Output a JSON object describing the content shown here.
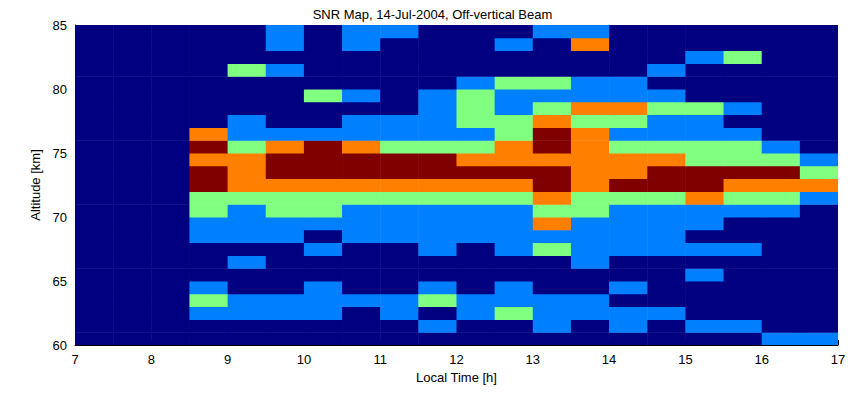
{
  "chart_data": {
    "type": "heatmap",
    "title": "SNR Map, 14-Jul-2004, Off-vertical Beam",
    "xlabel": "Local Time [h]",
    "ylabel": "Altitude [km]",
    "xlim": [
      7,
      17
    ],
    "xticks": [
      7,
      8,
      9,
      10,
      11,
      12,
      13,
      14,
      15,
      16,
      17
    ],
    "ylim": [
      60,
      85
    ],
    "yticks": [
      60,
      65,
      70,
      75,
      80,
      85
    ],
    "grid": false,
    "x_edges": [
      7,
      7.5,
      8,
      8.5,
      9,
      9.5,
      10,
      10.5,
      11,
      11.5,
      12,
      12.5,
      13,
      13.5,
      14,
      14.5,
      15,
      15.5,
      16,
      16.5,
      17
    ],
    "y_edges": [
      60,
      61,
      62,
      63,
      64,
      65,
      66,
      67,
      68,
      69,
      70,
      71,
      72,
      73,
      74,
      75,
      76,
      77,
      78,
      79,
      80,
      81,
      82,
      83,
      84,
      85
    ],
    "zlim": [
      0,
      4
    ],
    "z": [
      [
        0,
        0,
        0,
        0,
        0,
        0,
        0,
        0,
        0,
        0,
        0,
        0,
        0,
        0,
        0,
        0,
        0,
        0,
        1,
        1
      ],
      [
        0,
        0,
        0,
        0,
        0,
        0,
        0,
        0,
        0,
        1,
        0,
        0,
        1,
        0,
        1,
        0,
        1,
        1,
        0,
        0
      ],
      [
        0,
        0,
        0,
        1,
        1,
        1,
        1,
        0,
        1,
        0,
        1,
        2,
        1,
        1,
        1,
        1,
        0,
        0,
        0,
        0
      ],
      [
        0,
        0,
        0,
        2,
        1,
        1,
        1,
        1,
        1,
        2,
        1,
        1,
        1,
        1,
        0,
        0,
        0,
        0,
        0,
        0
      ],
      [
        0,
        0,
        0,
        1,
        0,
        0,
        1,
        0,
        0,
        1,
        0,
        1,
        0,
        0,
        1,
        0,
        0,
        0,
        0,
        0
      ],
      [
        0,
        0,
        0,
        0,
        0,
        0,
        0,
        0,
        0,
        0,
        0,
        0,
        0,
        0,
        0,
        0,
        1,
        0,
        0,
        0
      ],
      [
        0,
        0,
        0,
        0,
        1,
        0,
        0,
        0,
        0,
        0,
        0,
        0,
        0,
        1,
        0,
        0,
        0,
        0,
        0,
        0
      ],
      [
        0,
        0,
        0,
        0,
        0,
        0,
        1,
        0,
        0,
        1,
        0,
        1,
        2,
        1,
        1,
        1,
        1,
        1,
        0,
        0
      ],
      [
        0,
        0,
        0,
        1,
        1,
        1,
        0,
        1,
        1,
        1,
        1,
        1,
        1,
        1,
        1,
        1,
        0,
        0,
        0,
        0
      ],
      [
        0,
        0,
        0,
        1,
        1,
        1,
        1,
        1,
        1,
        1,
        1,
        1,
        3,
        1,
        1,
        1,
        1,
        0,
        0,
        0
      ],
      [
        0,
        0,
        0,
        2,
        1,
        2,
        2,
        1,
        1,
        1,
        1,
        1,
        2,
        2,
        1,
        1,
        1,
        1,
        1,
        0
      ],
      [
        0,
        0,
        0,
        2,
        2,
        2,
        2,
        2,
        2,
        2,
        2,
        2,
        3,
        2,
        2,
        2,
        3,
        2,
        2,
        1
      ],
      [
        0,
        0,
        0,
        4,
        3,
        3,
        3,
        3,
        3,
        3,
        3,
        3,
        4,
        3,
        4,
        4,
        4,
        3,
        3,
        3
      ],
      [
        0,
        0,
        0,
        4,
        3,
        4,
        4,
        4,
        4,
        4,
        4,
        4,
        4,
        3,
        3,
        4,
        4,
        4,
        4,
        2
      ],
      [
        0,
        0,
        0,
        3,
        3,
        4,
        4,
        4,
        4,
        4,
        3,
        3,
        3,
        3,
        3,
        3,
        2,
        2,
        2,
        1
      ],
      [
        0,
        0,
        0,
        4,
        2,
        3,
        4,
        3,
        2,
        2,
        2,
        3,
        4,
        3,
        2,
        2,
        2,
        2,
        1,
        0
      ],
      [
        0,
        0,
        0,
        3,
        1,
        1,
        1,
        1,
        1,
        1,
        1,
        2,
        4,
        3,
        1,
        1,
        1,
        1,
        0,
        0
      ],
      [
        0,
        0,
        0,
        0,
        1,
        0,
        0,
        1,
        1,
        1,
        2,
        2,
        3,
        2,
        2,
        1,
        1,
        0,
        0,
        0
      ],
      [
        0,
        0,
        0,
        0,
        0,
        0,
        0,
        0,
        0,
        1,
        2,
        1,
        2,
        3,
        3,
        2,
        2,
        1,
        0,
        0
      ],
      [
        0,
        0,
        0,
        0,
        0,
        0,
        2,
        1,
        0,
        1,
        2,
        1,
        1,
        1,
        1,
        1,
        0,
        0,
        0,
        0
      ],
      [
        0,
        0,
        0,
        0,
        0,
        0,
        0,
        0,
        0,
        0,
        1,
        2,
        2,
        1,
        1,
        0,
        0,
        0,
        0,
        0
      ],
      [
        0,
        0,
        0,
        0,
        2,
        1,
        0,
        0,
        0,
        0,
        0,
        0,
        0,
        0,
        0,
        1,
        0,
        0,
        0,
        0
      ],
      [
        0,
        0,
        0,
        0,
        0,
        0,
        0,
        0,
        0,
        0,
        0,
        0,
        0,
        0,
        0,
        0,
        1,
        2,
        0,
        0
      ],
      [
        0,
        0,
        0,
        0,
        0,
        1,
        0,
        1,
        0,
        0,
        0,
        1,
        0,
        3,
        0,
        0,
        0,
        0,
        0,
        0
      ],
      [
        0,
        0,
        0,
        0,
        0,
        1,
        0,
        1,
        1,
        0,
        0,
        0,
        1,
        1,
        0,
        0,
        0,
        0,
        0,
        0
      ]
    ]
  }
}
